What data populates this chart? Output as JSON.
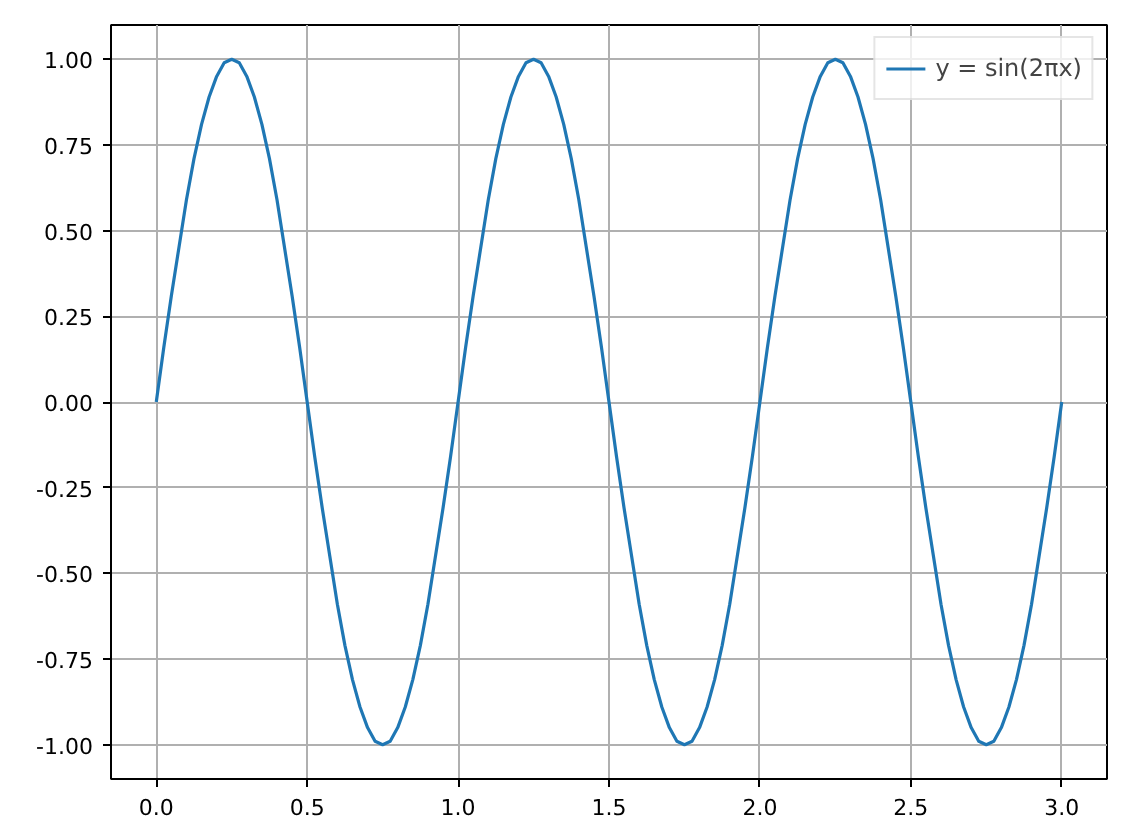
{
  "chart_data": {
    "type": "line",
    "x": [
      0,
      0.025,
      0.05,
      0.075,
      0.1,
      0.125,
      0.15,
      0.175,
      0.2,
      0.225,
      0.25,
      0.275,
      0.3,
      0.325,
      0.35,
      0.375,
      0.4,
      0.425,
      0.45,
      0.475,
      0.5,
      0.525,
      0.55,
      0.575,
      0.6,
      0.625,
      0.65,
      0.675,
      0.7,
      0.725,
      0.75,
      0.775,
      0.8,
      0.825,
      0.85,
      0.875,
      0.9,
      0.925,
      0.95,
      0.975,
      1,
      1.025,
      1.05,
      1.075,
      1.1,
      1.125,
      1.15,
      1.175,
      1.2,
      1.225,
      1.25,
      1.275,
      1.3,
      1.325,
      1.35,
      1.375,
      1.4,
      1.425,
      1.45,
      1.475,
      1.5,
      1.525,
      1.55,
      1.575,
      1.6,
      1.625,
      1.65,
      1.675,
      1.7,
      1.725,
      1.75,
      1.775,
      1.8,
      1.825,
      1.85,
      1.875,
      1.9,
      1.925,
      1.95,
      1.975,
      2,
      2.025,
      2.05,
      2.075,
      2.1,
      2.125,
      2.15,
      2.175,
      2.2,
      2.225,
      2.25,
      2.275,
      2.3,
      2.325,
      2.35,
      2.375,
      2.4,
      2.425,
      2.45,
      2.475,
      2.5,
      2.525,
      2.55,
      2.575,
      2.6,
      2.625,
      2.65,
      2.675,
      2.7,
      2.725,
      2.75,
      2.775,
      2.8,
      2.825,
      2.85,
      2.875,
      2.9,
      2.925,
      2.95,
      2.975,
      3
    ],
    "series": [
      {
        "name": "y = sin(2πx)",
        "color": "#1f77b4",
        "values": [
          0,
          0.16,
          0.31,
          0.45,
          0.59,
          0.71,
          0.81,
          0.89,
          0.95,
          0.99,
          1,
          0.99,
          0.95,
          0.89,
          0.81,
          0.71,
          0.59,
          0.45,
          0.31,
          0.16,
          0,
          -0.16,
          -0.31,
          -0.45,
          -0.59,
          -0.71,
          -0.81,
          -0.89,
          -0.95,
          -0.99,
          -1,
          -0.99,
          -0.95,
          -0.89,
          -0.81,
          -0.71,
          -0.59,
          -0.45,
          -0.31,
          -0.16,
          0,
          0.16,
          0.31,
          0.45,
          0.59,
          0.71,
          0.81,
          0.89,
          0.95,
          0.99,
          1,
          0.99,
          0.95,
          0.89,
          0.81,
          0.71,
          0.59,
          0.45,
          0.31,
          0.16,
          0,
          -0.16,
          -0.31,
          -0.45,
          -0.59,
          -0.71,
          -0.81,
          -0.89,
          -0.95,
          -0.99,
          -1,
          -0.99,
          -0.95,
          -0.89,
          -0.81,
          -0.71,
          -0.59,
          -0.45,
          -0.31,
          -0.16,
          0,
          0.16,
          0.31,
          0.45,
          0.59,
          0.71,
          0.81,
          0.89,
          0.95,
          0.99,
          1,
          0.99,
          0.95,
          0.89,
          0.81,
          0.71,
          0.59,
          0.45,
          0.31,
          0.16,
          0,
          -0.16,
          -0.31,
          -0.45,
          -0.59,
          -0.71,
          -0.81,
          -0.89,
          -0.95,
          -0.99,
          -1,
          -0.99,
          -0.95,
          -0.89,
          -0.81,
          -0.71,
          -0.59,
          -0.45,
          -0.31,
          -0.16,
          0
        ]
      }
    ],
    "xlim": [
      -0.15,
      3.15
    ],
    "ylim": [
      -1.1,
      1.1
    ],
    "xticks": [
      {
        "value": 0,
        "label": "0.0"
      },
      0.5,
      {
        "value": 1,
        "label": "1.0"
      },
      1.5,
      {
        "value": 2,
        "label": "2.0"
      },
      2.5,
      {
        "value": 3,
        "label": "3.0"
      }
    ],
    "yticks": [
      {
        "value": -1,
        "label": "-1.00"
      },
      {
        "value": -0.75,
        "label": "-0.75"
      },
      {
        "value": -0.5,
        "label": "-0.50"
      },
      {
        "value": -0.25,
        "label": "-0.25"
      },
      {
        "value": 0,
        "label": "0.00"
      },
      {
        "value": 0.25,
        "label": "0.25"
      },
      {
        "value": 0.5,
        "label": "0.50"
      },
      {
        "value": 0.75,
        "label": "0.75"
      },
      {
        "value": 1,
        "label": "1.00"
      }
    ],
    "grid": true,
    "legend": "top right",
    "marker": "none",
    "line_style": "solid"
  }
}
